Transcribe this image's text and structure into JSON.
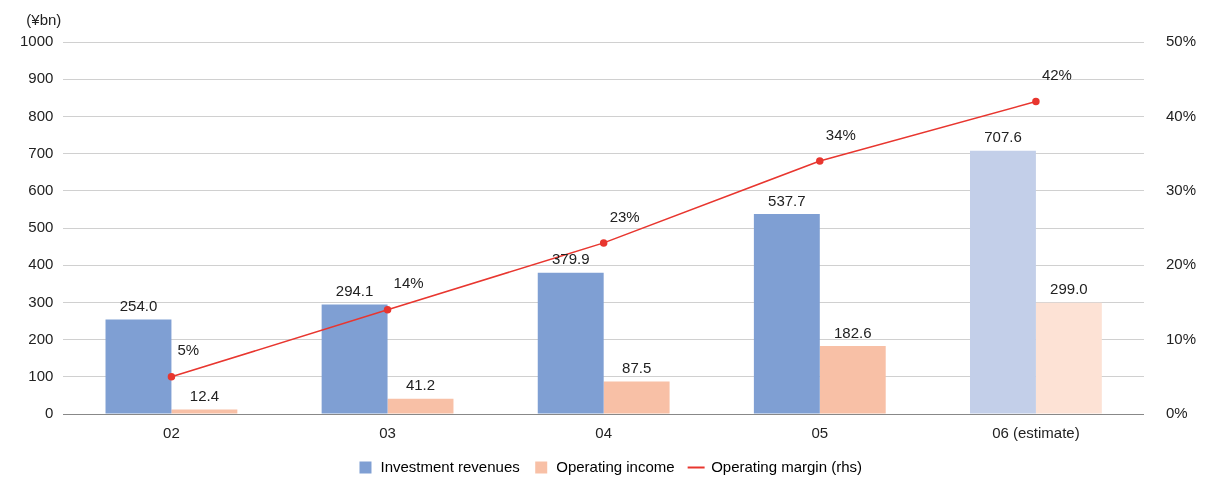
{
  "chart_data": {
    "type": "bar",
    "ylabel": "(¥bn)",
    "categories": [
      "02",
      "03",
      "04",
      "05",
      "06 (estimate)"
    ],
    "series": [
      {
        "name": "Investment revenues",
        "color": "#7f9fd3",
        "colors": [
          "#7f9fd3",
          "#7f9fd3",
          "#7f9fd3",
          "#7f9fd3",
          "#c3cfe9"
        ],
        "values": [
          254.0,
          294.1,
          379.9,
          537.7,
          707.6
        ],
        "value_labels": [
          "254.0",
          "294.1",
          "379.9",
          "537.7",
          "707.6"
        ]
      },
      {
        "name": "Operating income",
        "color": "#f8c0a6",
        "colors": [
          "#f8c0a6",
          "#f8c0a6",
          "#f8c0a6",
          "#f8c0a6",
          "#fde2d5"
        ],
        "values": [
          12.4,
          41.2,
          87.5,
          182.6,
          299.0
        ],
        "value_labels": [
          "12.4",
          "41.2",
          "87.5",
          "182.6",
          "299.0"
        ]
      },
      {
        "name": "Operating margin (rhs)",
        "type": "line",
        "axis": "y2",
        "color": "#e8362f",
        "values": [
          5,
          14,
          23,
          34,
          42
        ],
        "value_labels": [
          "5%",
          "14%",
          "23%",
          "34%",
          "42%"
        ]
      }
    ],
    "ylim": [
      0,
      1000
    ],
    "yticks": [
      0,
      100,
      200,
      300,
      400,
      500,
      600,
      700,
      800,
      900,
      1000
    ],
    "y2lim": [
      0,
      50
    ],
    "y2ticks": [
      {
        "value": 0,
        "label": "0%"
      },
      {
        "value": 10,
        "label": "10%"
      },
      {
        "value": 20,
        "label": "20%"
      },
      {
        "value": 30,
        "label": "30%"
      },
      {
        "value": 40,
        "label": "40%"
      },
      {
        "value": 50,
        "label": "50%"
      }
    ],
    "grid": "y",
    "legend": "bottom",
    "marker": "circle",
    "line_style": "solid"
  }
}
